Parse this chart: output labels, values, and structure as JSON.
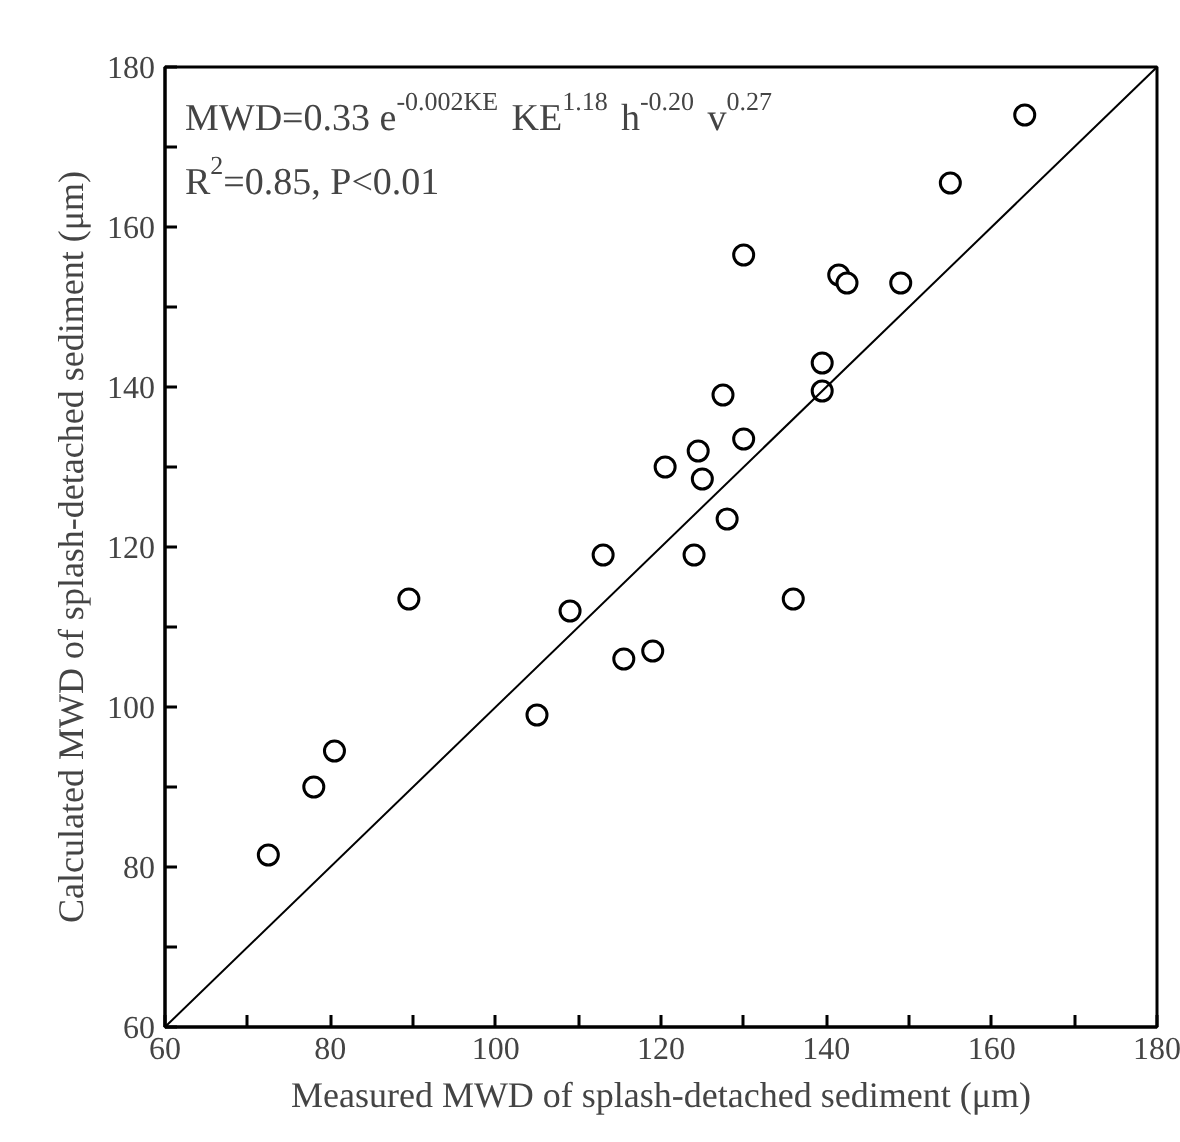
{
  "chart_data": {
    "type": "scatter",
    "xlabel": "Measured MWD of splash-detached sediment (μm)",
    "ylabel": "Calculated MWD of splash-detached sediment (μm)",
    "xlim": [
      60,
      180
    ],
    "ylim": [
      60,
      180
    ],
    "xticks": [
      60,
      {
        "value": 70,
        "label": null
      },
      80,
      {
        "value": 90,
        "label": null
      },
      100,
      {
        "value": 110,
        "label": null
      },
      120,
      {
        "value": 130,
        "label": null
      },
      140,
      {
        "value": 150,
        "label": null
      },
      160,
      {
        "value": 170,
        "label": null
      },
      180
    ],
    "yticks": [
      60,
      {
        "value": 70,
        "label": null
      },
      80,
      {
        "value": 90,
        "label": null
      },
      100,
      {
        "value": 110,
        "label": null
      },
      120,
      {
        "value": 130,
        "label": null
      },
      140,
      {
        "value": 150,
        "label": null
      },
      160,
      {
        "value": 170,
        "label": null
      },
      180
    ],
    "grid": false,
    "series": [
      {
        "marker": "circle",
        "color": "#000000",
        "x": [
          72.5,
          78,
          80.5,
          89.5,
          105,
          109,
          113,
          115.5,
          119,
          120.5,
          124,
          124.5,
          125,
          127.5,
          128,
          130,
          130,
          136,
          139.5,
          139.5,
          141.5,
          142.5,
          149,
          155,
          164
        ],
        "values": [
          81.5,
          90,
          94.5,
          113.5,
          99,
          112,
          119,
          106,
          107,
          130,
          119,
          132,
          128.5,
          139,
          123.5,
          133.5,
          156.5,
          113.5,
          139.5,
          143,
          154,
          153,
          153,
          165.5,
          174
        ]
      },
      {
        "type": "line",
        "line_style": "solid",
        "color": "#000000",
        "x": [
          60,
          180
        ],
        "values": [
          60,
          180
        ]
      }
    ],
    "annotations": [
      "MWD=0.33 e$^{-0.002KE}$ KE$^{1.18}$ h$^{-0.20}$ v$^{0.27}$",
      "R$^{2}$=0.85, P<0.01"
    ]
  }
}
